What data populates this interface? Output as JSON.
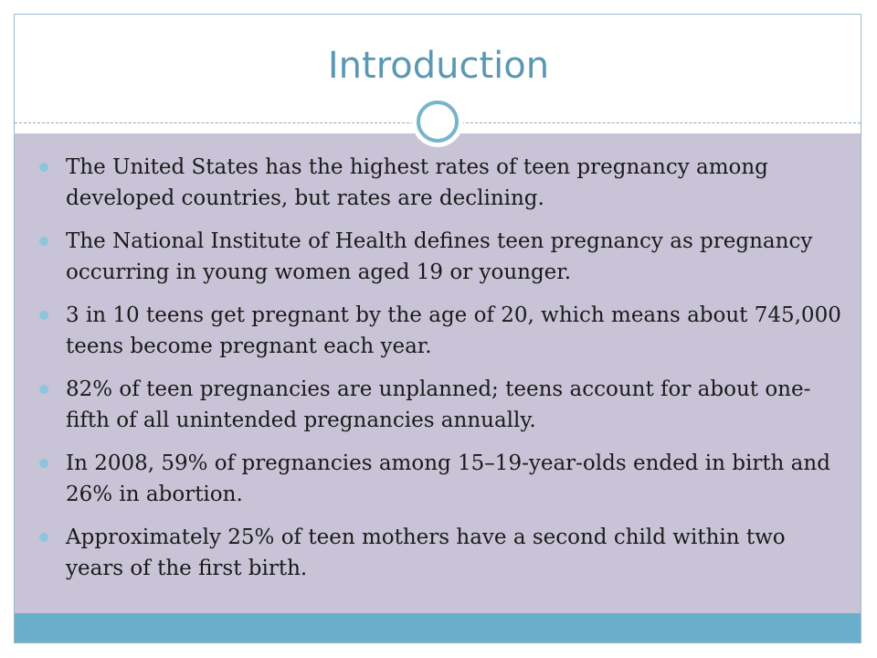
{
  "slide": {
    "title": "Introduction",
    "bullets": [
      "The United States has the highest rates of teen pregnancy among developed countries, but rates are declining.",
      "The National Institute of Health defines teen pregnancy as pregnancy occurring in young women aged 19 or younger.",
      "3 in 10 teens get pregnant by the age of 20, which means about 745,000 teens become pregnant each year.",
      "82% of teen pregnancies are unplanned; teens account for about one-fifth of all unintended pregnancies annually.",
      "In 2008, 59% of pregnancies among 15–19-year-olds ended in birth and 26% in abortion.",
      "Approximately 25% of teen mothers have a second child within two years of the first birth."
    ]
  },
  "colors": {
    "title": "#5a98b3",
    "panel": "#c8c3d6",
    "bottom_bar": "#6aaecb",
    "ring": "#79b3cd",
    "bullet": "#8cc6dd"
  }
}
